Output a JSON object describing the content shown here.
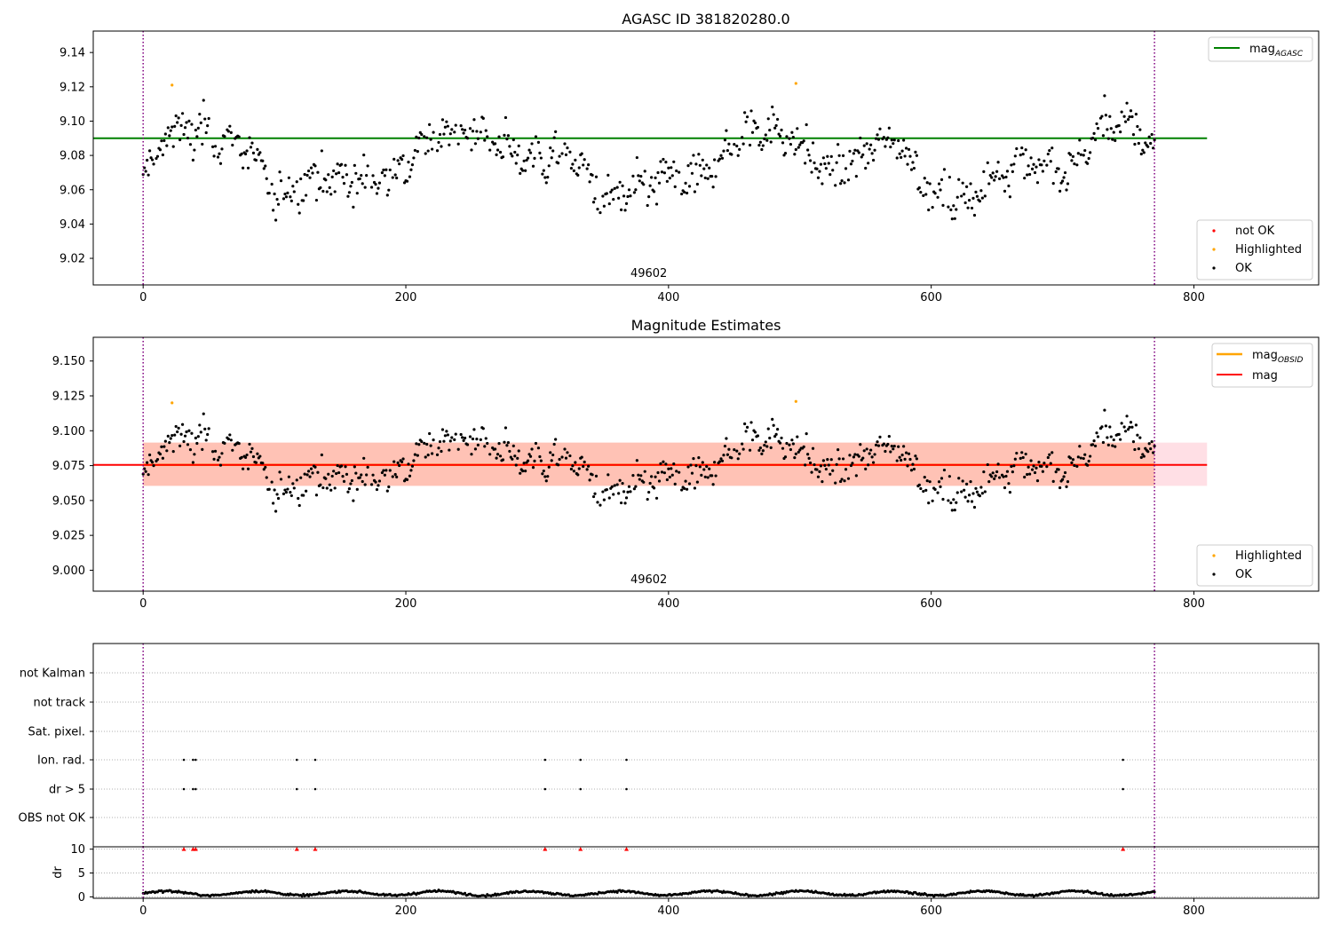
{
  "chart_data": [
    {
      "type": "scatter",
      "title": "AGASC ID 381820280.0",
      "xlim": [
        -38,
        895
      ],
      "ylim": [
        9.0045,
        9.1525
      ],
      "xticks": [
        0,
        200,
        400,
        600,
        800
      ],
      "yticks": [
        9.02,
        9.04,
        9.06,
        9.08,
        9.1,
        9.12,
        9.14
      ],
      "ytick_labels": [
        "9.02",
        "9.04",
        "9.06",
        "9.08",
        "9.10",
        "9.12",
        "9.14"
      ],
      "obsid_label": "49602",
      "obsid_x": 385,
      "obs_bounds": [
        0,
        770
      ],
      "mag_agasc": 9.09,
      "highlighted_points": [
        [
          22,
          9.121
        ],
        [
          497,
          9.122
        ]
      ],
      "legend_upper": [
        {
          "label": "mag",
          "sub": "AGASC",
          "color": "#008000"
        }
      ],
      "legend_lower": [
        {
          "label": "not OK",
          "color": "#ff0000"
        },
        {
          "label": "Highlighted",
          "color": "#ffa500"
        },
        {
          "label": "OK",
          "color": "#000000"
        }
      ]
    },
    {
      "type": "scatter",
      "title": "Magnitude Estimates",
      "xlim": [
        -38,
        895
      ],
      "ylim": [
        8.985,
        9.167
      ],
      "xticks": [
        0,
        200,
        400,
        600,
        800
      ],
      "yticks": [
        9.0,
        9.025,
        9.05,
        9.075,
        9.1,
        9.125,
        9.15
      ],
      "ytick_labels": [
        "9.000",
        "9.025",
        "9.050",
        "9.075",
        "9.100",
        "9.125",
        "9.150"
      ],
      "obsid_label": "49602",
      "obsid_x": 385,
      "obs_bounds": [
        0,
        770
      ],
      "mag": 9.0755,
      "mag_band": [
        9.0605,
        9.0915
      ],
      "highlighted_points": [
        [
          22,
          9.12
        ],
        [
          497,
          9.121
        ]
      ],
      "legend_upper": [
        {
          "label": "mag",
          "sub": "OBSID",
          "color": "#ffa500"
        },
        {
          "label": "mag",
          "sub": "",
          "color": "#ff0000"
        }
      ],
      "legend_lower": [
        {
          "label": "Highlighted",
          "color": "#ffa500"
        },
        {
          "label": "OK",
          "color": "#000000"
        }
      ]
    },
    {
      "type": "scatter",
      "title": "",
      "xlim": [
        -38,
        895
      ],
      "xticks": [
        0,
        200,
        400,
        600,
        800
      ],
      "flag_labels": [
        "not Kalman",
        "not track",
        "Sat. pixel.",
        "Ion. rad.",
        "dr > 5",
        "OBS not OK"
      ],
      "flag_points": {
        "Ion. rad.": [
          31,
          38,
          40,
          117,
          131,
          306,
          333,
          368,
          746
        ],
        "dr > 5": [
          31,
          38,
          40,
          117,
          131,
          306,
          333,
          368,
          746
        ]
      },
      "dr_ylabel": "dr",
      "dr_ylim": [
        -0.3,
        10.5
      ],
      "dr_yticks": [
        0,
        5,
        10
      ],
      "dr_capped_points": [
        31,
        38,
        40,
        117,
        131,
        306,
        333,
        368,
        746
      ],
      "dr_cap": 10
    }
  ]
}
